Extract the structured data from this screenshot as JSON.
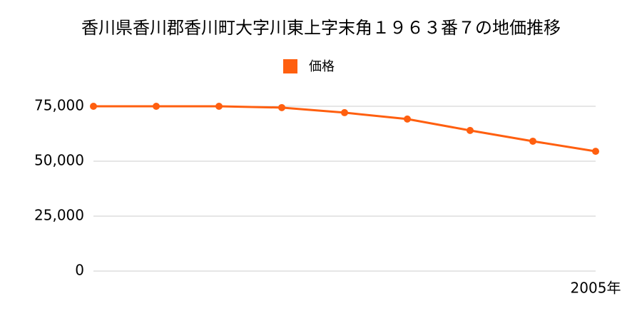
{
  "chart_data": {
    "type": "line",
    "title": "香川県香川郡香川町大字川東上字末角１９６３番７の地価推移",
    "categories": [
      null,
      null,
      null,
      null,
      null,
      null,
      null,
      null,
      "2005年"
    ],
    "series": [
      {
        "name": "価格",
        "color": "#ff5f0f",
        "values": [
          75000,
          75000,
          75000,
          74400,
          72100,
          69200,
          64000,
          59100,
          54500
        ]
      }
    ],
    "ylim": [
      0,
      75000
    ],
    "yticks": [
      0,
      {
        "value": 25000,
        "label": "25,000"
      },
      {
        "value": 50000,
        "label": "50,000"
      },
      {
        "value": 75000,
        "label": "75,000"
      }
    ],
    "grid": true
  }
}
